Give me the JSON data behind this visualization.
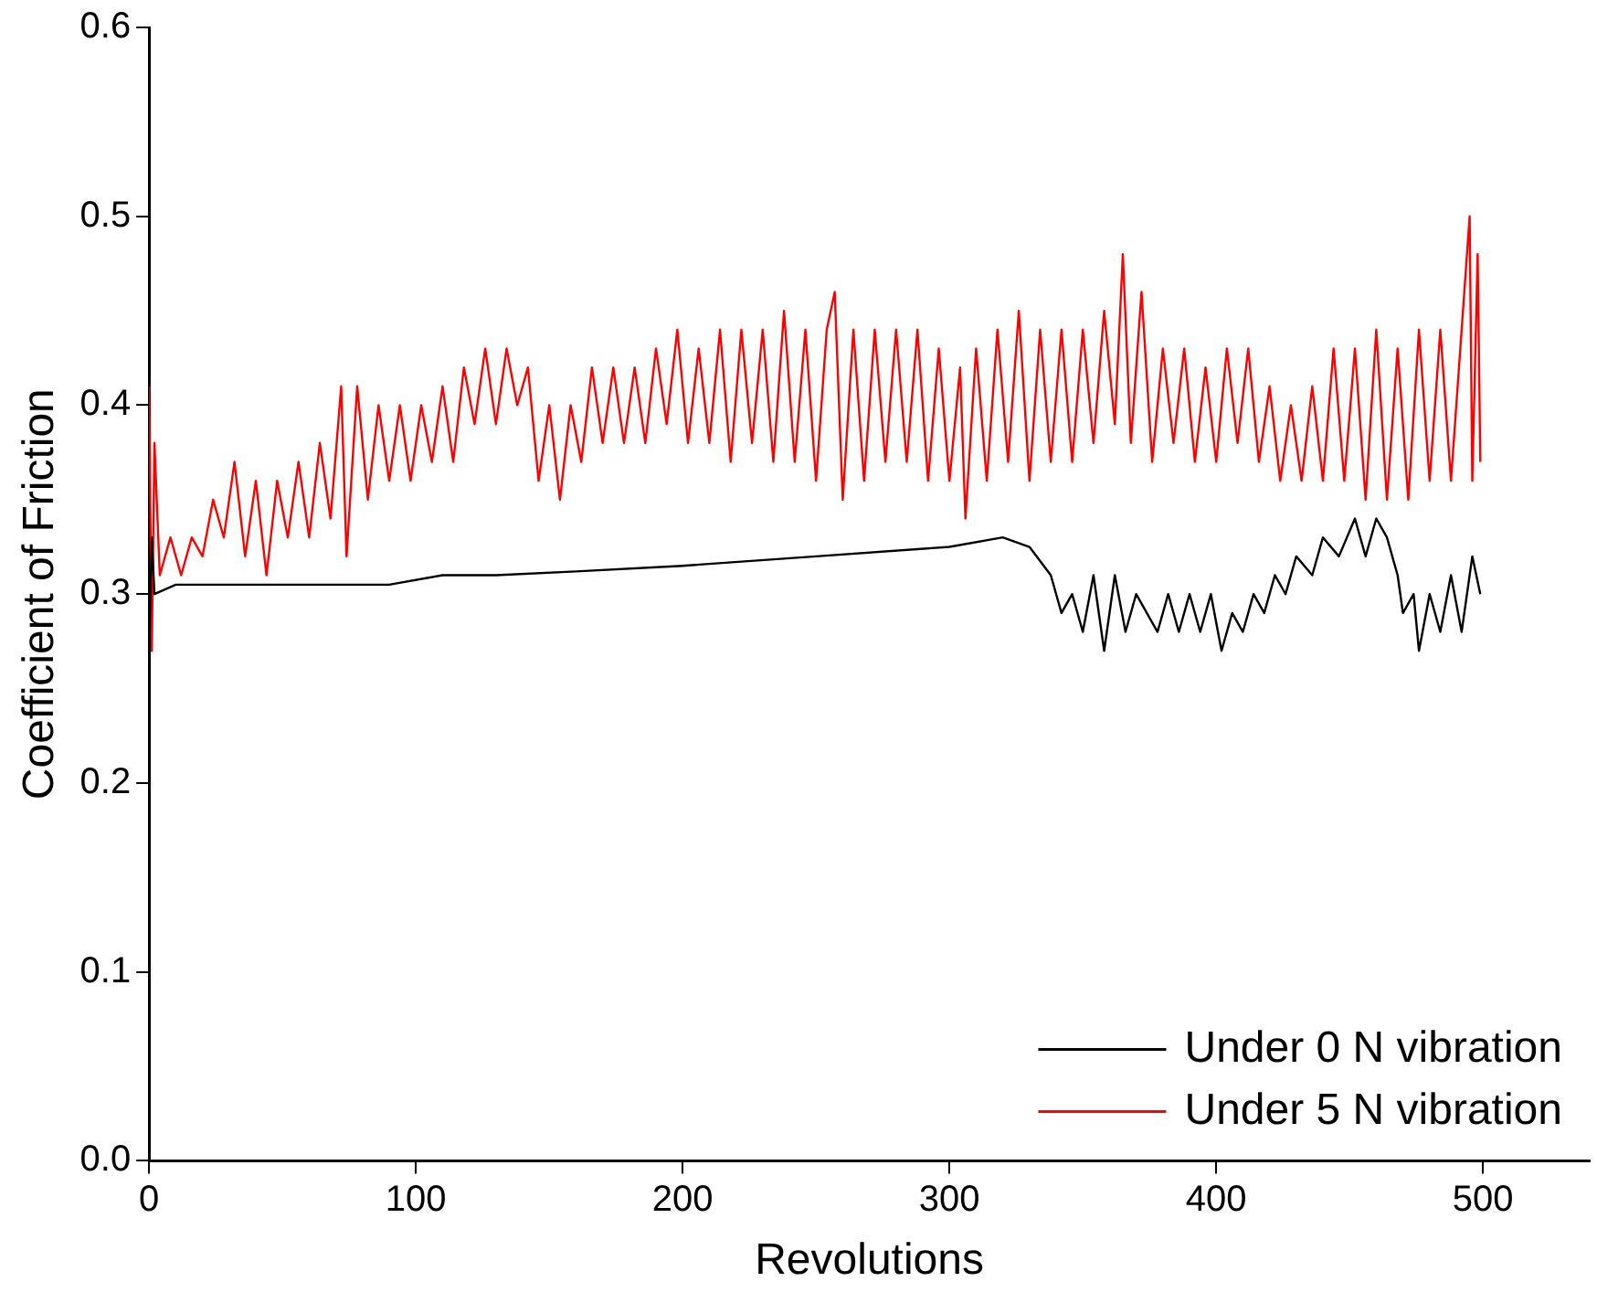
{
  "chart_data": {
    "type": "line",
    "xlabel": "Revolutions",
    "ylabel": "Coefficient of Friction",
    "xlim": [
      0,
      540
    ],
    "xticks": [
      0,
      100,
      200,
      300,
      400,
      500
    ],
    "ylim": [
      0,
      0.6
    ],
    "yticks": [
      {
        "value": 0,
        "label": "0.0"
      },
      {
        "value": 0.1,
        "label": "0.1"
      },
      {
        "value": 0.2,
        "label": "0.2"
      },
      {
        "value": 0.3,
        "label": "0.3"
      },
      {
        "value": 0.4,
        "label": "0.4"
      },
      {
        "value": 0.5,
        "label": "0.5"
      },
      {
        "value": 0.6,
        "label": "0.6"
      }
    ],
    "grid": false,
    "legend": "bottom right",
    "marker": "none",
    "line_style": "solid",
    "series": [
      {
        "name": "Under 0 N vibration",
        "color": "#000000",
        "x": [
          0,
          1,
          2,
          10,
          30,
          60,
          90,
          110,
          130,
          160,
          200,
          250,
          300,
          320,
          330,
          338,
          342,
          346,
          350,
          354,
          358,
          362,
          366,
          370,
          374,
          378,
          382,
          386,
          390,
          394,
          398,
          402,
          406,
          410,
          414,
          418,
          422,
          426,
          430,
          436,
          440,
          446,
          452,
          456,
          460,
          464,
          468,
          470,
          474,
          476,
          480,
          484,
          488,
          492,
          496,
          499
        ],
        "values": [
          0.27,
          0.33,
          0.3,
          0.305,
          0.305,
          0.305,
          0.305,
          0.31,
          0.31,
          0.312,
          0.315,
          0.32,
          0.325,
          0.33,
          0.325,
          0.31,
          0.29,
          0.3,
          0.28,
          0.31,
          0.27,
          0.31,
          0.28,
          0.3,
          0.29,
          0.28,
          0.3,
          0.28,
          0.3,
          0.28,
          0.3,
          0.27,
          0.29,
          0.28,
          0.3,
          0.29,
          0.31,
          0.3,
          0.32,
          0.31,
          0.33,
          0.32,
          0.34,
          0.32,
          0.34,
          0.33,
          0.31,
          0.29,
          0.3,
          0.27,
          0.3,
          0.28,
          0.31,
          0.28,
          0.32,
          0.3
        ]
      },
      {
        "name": "Under 5 N vibration",
        "color": "#ff0000",
        "x": [
          0,
          1,
          2,
          4,
          8,
          12,
          16,
          20,
          24,
          28,
          32,
          36,
          40,
          44,
          48,
          52,
          56,
          60,
          64,
          68,
          72,
          74,
          78,
          82,
          86,
          90,
          94,
          98,
          102,
          106,
          110,
          114,
          118,
          122,
          126,
          130,
          134,
          138,
          142,
          146,
          150,
          154,
          158,
          162,
          166,
          170,
          174,
          178,
          182,
          186,
          190,
          194,
          198,
          202,
          206,
          210,
          214,
          218,
          222,
          226,
          230,
          234,
          238,
          242,
          246,
          250,
          254,
          257,
          260,
          264,
          268,
          272,
          276,
          280,
          284,
          288,
          292,
          296,
          300,
          304,
          306,
          310,
          314,
          318,
          322,
          326,
          330,
          334,
          338,
          342,
          346,
          350,
          354,
          358,
          362,
          365,
          368,
          372,
          376,
          380,
          384,
          388,
          392,
          396,
          400,
          404,
          408,
          412,
          416,
          420,
          424,
          428,
          432,
          436,
          440,
          444,
          448,
          452,
          456,
          460,
          464,
          468,
          472,
          476,
          480,
          484,
          488,
          492,
          495,
          496,
          498,
          499
        ],
        "values": [
          0.41,
          0.27,
          0.38,
          0.31,
          0.33,
          0.31,
          0.33,
          0.32,
          0.35,
          0.33,
          0.37,
          0.32,
          0.36,
          0.31,
          0.36,
          0.33,
          0.37,
          0.33,
          0.38,
          0.34,
          0.41,
          0.32,
          0.41,
          0.35,
          0.4,
          0.36,
          0.4,
          0.36,
          0.4,
          0.37,
          0.41,
          0.37,
          0.42,
          0.39,
          0.43,
          0.39,
          0.43,
          0.4,
          0.42,
          0.36,
          0.4,
          0.35,
          0.4,
          0.37,
          0.42,
          0.38,
          0.42,
          0.38,
          0.42,
          0.38,
          0.43,
          0.39,
          0.44,
          0.38,
          0.43,
          0.38,
          0.44,
          0.37,
          0.44,
          0.38,
          0.44,
          0.37,
          0.45,
          0.37,
          0.44,
          0.36,
          0.44,
          0.46,
          0.35,
          0.44,
          0.36,
          0.44,
          0.37,
          0.44,
          0.37,
          0.44,
          0.36,
          0.43,
          0.36,
          0.42,
          0.34,
          0.43,
          0.36,
          0.44,
          0.37,
          0.45,
          0.36,
          0.44,
          0.37,
          0.44,
          0.37,
          0.44,
          0.38,
          0.45,
          0.39,
          0.48,
          0.38,
          0.46,
          0.37,
          0.43,
          0.38,
          0.43,
          0.37,
          0.42,
          0.37,
          0.43,
          0.38,
          0.43,
          0.37,
          0.41,
          0.36,
          0.4,
          0.36,
          0.41,
          0.36,
          0.43,
          0.36,
          0.43,
          0.35,
          0.44,
          0.35,
          0.43,
          0.35,
          0.44,
          0.36,
          0.44,
          0.36,
          0.44,
          0.5,
          0.36,
          0.48,
          0.37
        ]
      }
    ]
  }
}
